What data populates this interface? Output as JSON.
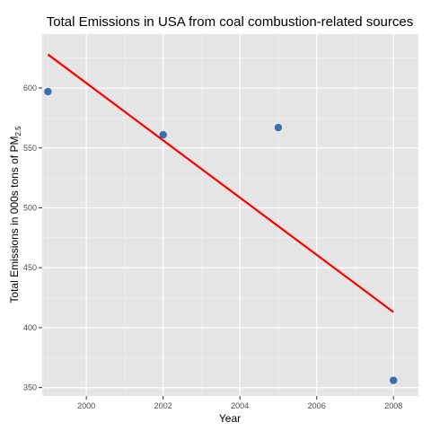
{
  "chart_data": {
    "type": "scatter",
    "title": "Total Emissions in USA from coal combustion-related sources",
    "xlabel": "Year",
    "ylabel": {
      "main": "Total Emissions in 000s tons of PM",
      "subscript": "2.5"
    },
    "xlim": [
      1998.85,
      2008.65
    ],
    "ylim": [
      343,
      645
    ],
    "x_ticks": [
      2000,
      2002,
      2004,
      2006,
      2008
    ],
    "y_ticks": [
      350,
      400,
      450,
      500,
      550,
      600
    ],
    "grid": true,
    "legend": "none",
    "points": [
      {
        "x": 1999,
        "y": 597
      },
      {
        "x": 2002,
        "y": 561
      },
      {
        "x": 2005,
        "y": 567
      },
      {
        "x": 2008,
        "y": 356
      }
    ],
    "fit_line": {
      "type": "linear",
      "start": {
        "x": 1999,
        "y": 628
      },
      "end": {
        "x": 2008,
        "y": 413
      }
    },
    "colors": {
      "panel": "#e5e5e5",
      "grid_major": "#ffffff",
      "grid_minor": "#f2f2f2",
      "points": "#3a6fac",
      "fit_line": "#ff0000"
    }
  }
}
